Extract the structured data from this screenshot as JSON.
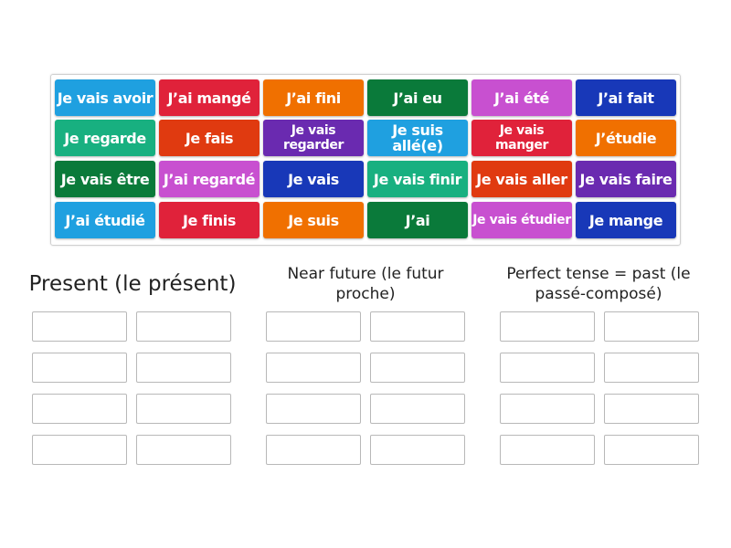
{
  "tiles": [
    {
      "label": "Je vais avoir",
      "color": "#1fa0e0"
    },
    {
      "label": "J’ai mangé",
      "color": "#e0223a"
    },
    {
      "label": "J’ai fini",
      "color": "#f07000"
    },
    {
      "label": "J’ai eu",
      "color": "#0a7a3a"
    },
    {
      "label": "J’ai été",
      "color": "#c850d0"
    },
    {
      "label": "J’ai fait",
      "color": "#1838b8"
    },
    {
      "label": "Je regarde",
      "color": "#18b080"
    },
    {
      "label": "Je fais",
      "color": "#e03a10"
    },
    {
      "label": "Je vais regarder",
      "color": "#6a2ab0"
    },
    {
      "label": "Je suis allé(e)",
      "color": "#1fa0e0"
    },
    {
      "label": "Je vais manger",
      "color": "#e0223a"
    },
    {
      "label": "J’étudie",
      "color": "#f07000"
    },
    {
      "label": "Je vais être",
      "color": "#0a7a3a"
    },
    {
      "label": "J’ai regardé",
      "color": "#c850d0"
    },
    {
      "label": "Je vais",
      "color": "#1838b8"
    },
    {
      "label": "Je vais finir",
      "color": "#18b080"
    },
    {
      "label": "Je vais aller",
      "color": "#e03a10"
    },
    {
      "label": "Je vais faire",
      "color": "#6a2ab0"
    },
    {
      "label": "J’ai étudié",
      "color": "#1fa0e0"
    },
    {
      "label": "Je finis",
      "color": "#e0223a"
    },
    {
      "label": "Je suis",
      "color": "#f07000"
    },
    {
      "label": "J’ai",
      "color": "#0a7a3a"
    },
    {
      "label": "Je vais étudier",
      "color": "#c850d0"
    },
    {
      "label": "Je mange",
      "color": "#1838b8"
    }
  ],
  "groups": [
    {
      "title": "Present (le présent)"
    },
    {
      "title": "Near future (le futur proche)"
    },
    {
      "title": "Perfect tense = past (le passé-composé)"
    }
  ]
}
